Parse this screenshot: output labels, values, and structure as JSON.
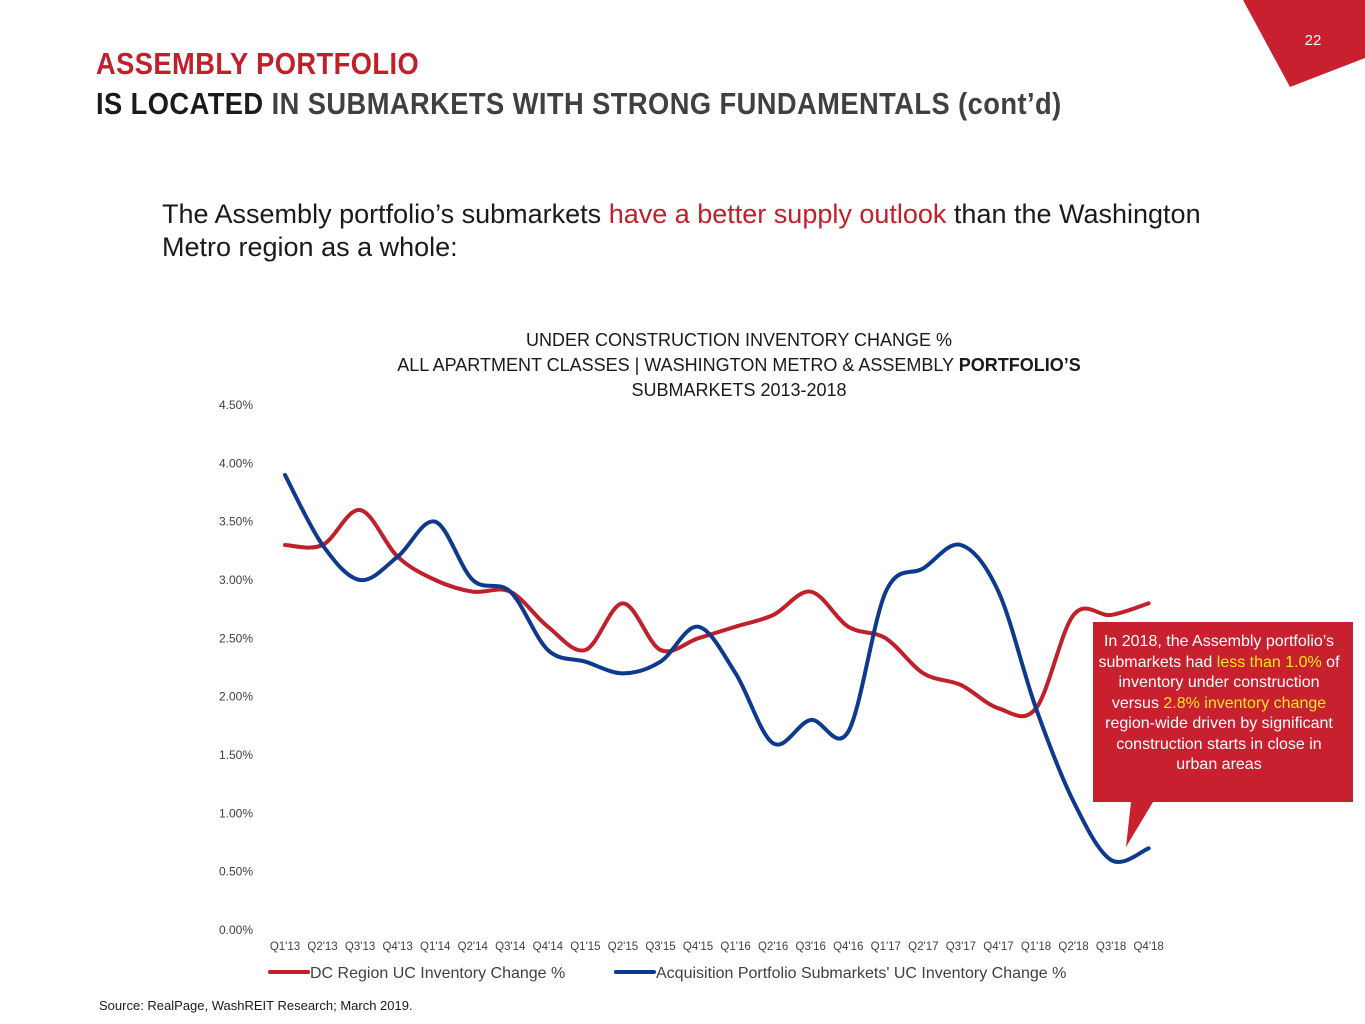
{
  "slide": {
    "page_number": "22",
    "title_line1": "ASSEMBLY PORTFOLIO",
    "title_line2a": "IS LOCATED",
    "title_line2b": " IN SUBMARKETS WITH STRONG FUNDAMENTALS (cont’d)",
    "intro_part1": "The Assembly portfolio’s submarkets ",
    "intro_highlight": "have a better supply outlook",
    "intro_part2": " than the Washington Metro region as a whole:",
    "source": "Source: RealPage, WashREIT Research; March 2019.",
    "colors": {
      "brand_red": "#c0202a",
      "series_red": "#c0202a",
      "series_blue": "#0d3a8c",
      "highlight_yellow": "#ffe81a"
    }
  },
  "callout": {
    "p1": "In 2018, the Assembly portfolio’s submarkets had ",
    "y1": "less than 1.0%",
    "p2": " of inventory under construction versus ",
    "y2": "2.8% inventory change",
    "p3": " region-wide driven by significant construction starts in close in urban areas"
  },
  "chart_data": {
    "type": "line",
    "title_line1": "UNDER CONSTRUCTION INVENTORY CHANGE %",
    "title_line2a": "ALL APARTMENT CLASSES | WASHINGTON METRO & ASSEMBLY ",
    "title_line2b": "PORTFOLIO’S",
    "title_line3": "SUBMARKETS 2013-2018",
    "xlabel": "",
    "ylabel": "",
    "ylim": [
      0,
      4.5
    ],
    "yticks": [
      "0.00%",
      "0.50%",
      "1.00%",
      "1.50%",
      "2.00%",
      "2.50%",
      "3.00%",
      "3.50%",
      "4.00%",
      "4.50%"
    ],
    "ytick_values": [
      0,
      0.5,
      1.0,
      1.5,
      2.0,
      2.5,
      3.0,
      3.5,
      4.0,
      4.5
    ],
    "grid": false,
    "legend_position": "bottom",
    "categories": [
      "Q1'13",
      "Q2'13",
      "Q3'13",
      "Q4'13",
      "Q1'14",
      "Q2'14",
      "Q3'14",
      "Q4'14",
      "Q1'15",
      "Q2'15",
      "Q3'15",
      "Q4'15",
      "Q1'16",
      "Q2'16",
      "Q3'16",
      "Q4'16",
      "Q1'17",
      "Q2'17",
      "Q3'17",
      "Q4'17",
      "Q1'18",
      "Q2'18",
      "Q3'18",
      "Q4'18"
    ],
    "series": [
      {
        "name": "DC Region UC Inventory Change %",
        "color": "#c0202a",
        "values": [
          3.3,
          3.3,
          3.6,
          3.2,
          3.0,
          2.9,
          2.9,
          2.6,
          2.4,
          2.8,
          2.4,
          2.5,
          2.6,
          2.7,
          2.9,
          2.6,
          2.5,
          2.2,
          2.1,
          1.9,
          1.9,
          2.7,
          2.7,
          2.8
        ]
      },
      {
        "name": "Acquisition Portfolio Submarkets'  UC Inventory Change %",
        "color": "#0d3a8c",
        "values": [
          3.9,
          3.3,
          3.0,
          3.2,
          3.5,
          3.0,
          2.9,
          2.4,
          2.3,
          2.2,
          2.3,
          2.6,
          2.2,
          1.6,
          1.8,
          1.7,
          2.9,
          3.1,
          3.3,
          2.9,
          1.9,
          1.1,
          0.6,
          0.7
        ]
      }
    ]
  }
}
